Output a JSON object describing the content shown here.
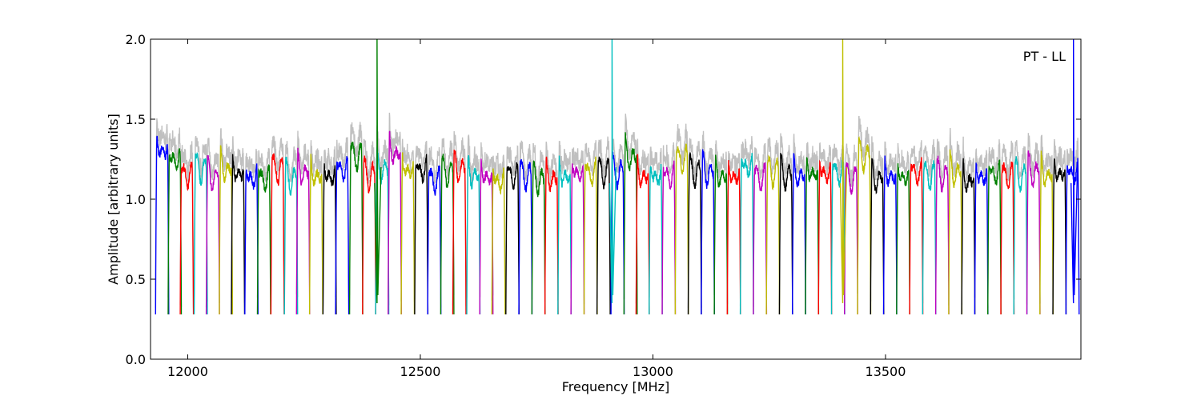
{
  "chart_data": {
    "type": "line",
    "title": "",
    "xlabel": "Frequency [MHz]",
    "ylabel": "Amplitude [arbitrary units]",
    "xlim": [
      11920,
      13920
    ],
    "ylim": [
      0.0,
      2.0
    ],
    "xticks": [
      12000,
      12500,
      13000,
      13500
    ],
    "yticks": [
      0.0,
      0.5,
      1.0,
      1.5,
      2.0
    ],
    "ytick_labels": [
      "0.0",
      "0.5",
      "1.0",
      "1.5",
      "2.0"
    ],
    "annotation": "PT - LL",
    "legend": "none",
    "grid": false,
    "colors": [
      "#0000ff",
      "#008000",
      "#ff0000",
      "#00bfbf",
      "#bf00bf",
      "#bfbf00",
      "#000000"
    ],
    "background_color": "#c0c0c0",
    "channels": [
      {
        "center": 11945,
        "level": 1.34
      },
      {
        "center": 11972,
        "level": 1.28
      },
      {
        "center": 11998,
        "level": 1.18
      },
      {
        "center": 12028,
        "level": 1.22
      },
      {
        "center": 12054,
        "level": 1.17
      },
      {
        "center": 12082,
        "level": 1.22
      },
      {
        "center": 12108,
        "level": 1.2
      },
      {
        "center": 12137,
        "level": 1.17
      },
      {
        "center": 12164,
        "level": 1.16
      },
      {
        "center": 12193,
        "level": 1.22
      },
      {
        "center": 12222,
        "level": 1.16
      },
      {
        "center": 12248,
        "level": 1.2
      },
      {
        "center": 12276,
        "level": 1.18
      },
      {
        "center": 12305,
        "level": 1.18
      },
      {
        "center": 12332,
        "level": 1.22
      },
      {
        "center": 12362,
        "level": 1.3
      },
      {
        "center": 12390,
        "level": 1.18
      },
      {
        "center": 12418,
        "level": 1.22
      },
      {
        "center": 12445,
        "level": 1.32
      },
      {
        "center": 12473,
        "level": 1.22
      },
      {
        "center": 12502,
        "level": 1.22
      },
      {
        "center": 12530,
        "level": 1.15
      },
      {
        "center": 12558,
        "level": 1.2
      },
      {
        "center": 12584,
        "level": 1.22
      },
      {
        "center": 12614,
        "level": 1.18
      },
      {
        "center": 12642,
        "level": 1.18
      },
      {
        "center": 12668,
        "level": 1.15
      },
      {
        "center": 12698,
        "level": 1.18
      },
      {
        "center": 12726,
        "level": 1.18
      },
      {
        "center": 12754,
        "level": 1.15
      },
      {
        "center": 12782,
        "level": 1.16
      },
      {
        "center": 12810,
        "level": 1.18
      },
      {
        "center": 12838,
        "level": 1.2
      },
      {
        "center": 12866,
        "level": 1.2
      },
      {
        "center": 12894,
        "level": 1.2
      },
      {
        "center": 12924,
        "level": 1.2
      },
      {
        "center": 12952,
        "level": 1.3
      },
      {
        "center": 12978,
        "level": 1.18
      },
      {
        "center": 13006,
        "level": 1.18
      },
      {
        "center": 13034,
        "level": 1.18
      },
      {
        "center": 13062,
        "level": 1.28
      },
      {
        "center": 13090,
        "level": 1.2
      },
      {
        "center": 13118,
        "level": 1.2
      },
      {
        "center": 13146,
        "level": 1.18
      },
      {
        "center": 13174,
        "level": 1.18
      },
      {
        "center": 13202,
        "level": 1.24
      },
      {
        "center": 13230,
        "level": 1.17
      },
      {
        "center": 13258,
        "level": 1.2
      },
      {
        "center": 13286,
        "level": 1.18
      },
      {
        "center": 13314,
        "level": 1.18
      },
      {
        "center": 13342,
        "level": 1.2
      },
      {
        "center": 13370,
        "level": 1.2
      },
      {
        "center": 13398,
        "level": 1.2
      },
      {
        "center": 13426,
        "level": 1.16
      },
      {
        "center": 13454,
        "level": 1.3
      },
      {
        "center": 13482,
        "level": 1.16
      },
      {
        "center": 13510,
        "level": 1.18
      },
      {
        "center": 13538,
        "level": 1.18
      },
      {
        "center": 13566,
        "level": 1.2
      },
      {
        "center": 13594,
        "level": 1.18
      },
      {
        "center": 13622,
        "level": 1.18
      },
      {
        "center": 13650,
        "level": 1.2
      },
      {
        "center": 13678,
        "level": 1.15
      },
      {
        "center": 13706,
        "level": 1.18
      },
      {
        "center": 13734,
        "level": 1.2
      },
      {
        "center": 13762,
        "level": 1.18
      },
      {
        "center": 13790,
        "level": 1.18
      },
      {
        "center": 13818,
        "level": 1.2
      },
      {
        "center": 13846,
        "level": 1.18
      },
      {
        "center": 13874,
        "level": 1.2
      },
      {
        "center": 13902,
        "level": 1.2
      }
    ],
    "spikes": [
      {
        "x": 12407,
        "color": "#008000"
      },
      {
        "x": 12912,
        "color": "#00bfbf"
      },
      {
        "x": 13408,
        "color": "#bfbf00"
      },
      {
        "x": 13904,
        "color": "#0000ff"
      }
    ]
  }
}
